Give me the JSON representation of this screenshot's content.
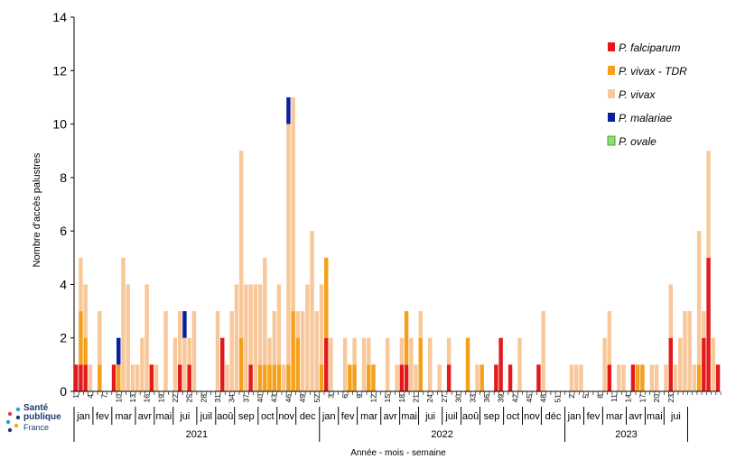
{
  "chart_data": {
    "type": "bar",
    "stacked": true,
    "ylabel": "Nombre d'accès palustres",
    "xlabel": "Année - mois - semaine",
    "ylim": [
      0,
      14
    ],
    "yticks": [
      0,
      2,
      4,
      6,
      8,
      10,
      12,
      14
    ],
    "legend_position": "top-right",
    "series": [
      {
        "name": "P. falciparum",
        "color": "#e31a1c",
        "values": [
          1,
          1,
          1,
          0,
          0,
          0,
          0,
          0,
          1,
          0,
          0,
          0,
          0,
          0,
          0,
          0,
          1,
          0,
          0,
          0,
          0,
          0,
          1,
          0,
          1,
          0,
          0,
          0,
          0,
          0,
          0,
          2,
          0,
          0,
          0,
          0,
          0,
          1,
          0,
          0,
          0,
          0,
          0,
          0,
          0,
          0,
          0,
          0,
          0,
          0,
          0,
          0,
          0,
          2,
          0,
          0,
          0,
          0,
          0,
          0,
          0,
          0,
          0,
          0,
          0,
          0,
          0,
          0,
          0,
          1,
          1,
          0,
          0,
          0,
          0,
          0,
          0,
          0,
          0,
          1,
          0,
          0,
          0,
          0,
          0,
          0,
          0,
          0,
          0,
          1,
          2,
          0,
          1,
          0,
          0,
          0,
          0,
          0,
          1,
          0,
          0,
          0,
          0,
          0,
          0,
          0,
          0,
          0,
          0,
          0,
          0,
          0,
          0,
          1,
          0,
          0,
          0,
          0,
          1,
          0,
          0,
          0,
          0,
          0,
          0,
          0,
          2,
          0,
          0,
          0,
          0,
          0,
          0,
          2,
          5,
          0,
          1
        ]
      },
      {
        "name": "P. vivax - TDR",
        "color": "#f5a01a",
        "values": [
          0,
          2,
          1,
          0,
          0,
          1,
          0,
          0,
          0,
          1,
          0,
          0,
          0,
          0,
          0,
          0,
          0,
          0,
          0,
          0,
          0,
          0,
          0,
          0,
          0,
          0,
          0,
          0,
          0,
          0,
          0,
          0,
          0,
          0,
          0,
          2,
          0,
          0,
          0,
          1,
          1,
          1,
          1,
          1,
          0,
          1,
          3,
          2,
          0,
          0,
          0,
          0,
          1,
          3,
          0,
          0,
          0,
          0,
          1,
          1,
          0,
          0,
          1,
          1,
          0,
          0,
          0,
          0,
          0,
          0,
          2,
          0,
          0,
          2,
          0,
          0,
          0,
          0,
          0,
          0,
          0,
          0,
          0,
          2,
          0,
          0,
          1,
          0,
          0,
          0,
          0,
          0,
          0,
          0,
          0,
          0,
          0,
          0,
          0,
          0,
          0,
          0,
          0,
          0,
          0,
          0,
          0,
          0,
          0,
          0,
          0,
          0,
          0,
          0,
          0,
          0,
          0,
          0,
          0,
          1,
          1,
          0,
          0,
          0,
          0,
          0,
          0,
          0,
          0,
          0,
          0,
          0,
          1,
          0,
          0,
          0,
          0
        ]
      },
      {
        "name": "P. vivax",
        "color": "#f8c89a",
        "values": [
          0,
          2,
          2,
          1,
          0,
          2,
          0,
          0,
          0,
          0,
          5,
          4,
          1,
          1,
          2,
          4,
          0,
          1,
          0,
          3,
          0,
          2,
          2,
          2,
          1,
          3,
          0,
          0,
          0,
          0,
          3,
          0,
          1,
          3,
          4,
          7,
          4,
          3,
          4,
          3,
          4,
          1,
          2,
          3,
          1,
          9,
          8,
          1,
          3,
          4,
          6,
          3,
          3,
          0,
          2,
          0,
          0,
          2,
          0,
          1,
          0,
          2,
          1,
          0,
          0,
          0,
          2,
          0,
          1,
          1,
          0,
          2,
          1,
          1,
          0,
          2,
          0,
          1,
          0,
          1,
          0,
          0,
          0,
          0,
          0,
          1,
          0,
          0,
          0,
          0,
          0,
          0,
          0,
          0,
          2,
          0,
          0,
          0,
          0,
          3,
          0,
          0,
          0,
          0,
          0,
          1,
          1,
          1,
          0,
          0,
          0,
          0,
          2,
          2,
          0,
          1,
          1,
          0,
          0,
          0,
          0,
          0,
          1,
          1,
          0,
          1,
          2,
          1,
          2,
          3,
          3,
          1,
          5,
          1,
          4,
          2,
          0
        ]
      },
      {
        "name": "P. malariae",
        "color": "#0a1e9e",
        "values": [
          0,
          0,
          0,
          0,
          0,
          0,
          0,
          0,
          0,
          1,
          0,
          0,
          0,
          0,
          0,
          0,
          0,
          0,
          0,
          0,
          0,
          0,
          0,
          1,
          0,
          0,
          0,
          0,
          0,
          0,
          0,
          0,
          0,
          0,
          0,
          0,
          0,
          0,
          0,
          0,
          0,
          0,
          0,
          0,
          0,
          1,
          0,
          0,
          0,
          0,
          0,
          0,
          0,
          0,
          0,
          0,
          0,
          0,
          0,
          0,
          0,
          0,
          0,
          0,
          0,
          0,
          0,
          0,
          0,
          0,
          0,
          0,
          0,
          0,
          0,
          0,
          0,
          0,
          0,
          0,
          0,
          0,
          0,
          0,
          0,
          0,
          0,
          0,
          0,
          0,
          0,
          0,
          0,
          0,
          0,
          0,
          0,
          0,
          0,
          0,
          0,
          0,
          0,
          0,
          0,
          0,
          0,
          0,
          0,
          0,
          0,
          0,
          0,
          0,
          0,
          0,
          0,
          0,
          0,
          0,
          0,
          0,
          0,
          0,
          0,
          0,
          0,
          0,
          0,
          0,
          0,
          0,
          0,
          0,
          0,
          0,
          0
        ]
      },
      {
        "name": "P. ovale",
        "color": "#8be06a",
        "values": [
          0,
          0,
          0,
          0,
          0,
          0,
          0,
          0,
          0,
          0,
          0,
          0,
          0,
          0,
          0,
          0,
          0,
          0,
          0,
          0,
          0,
          0,
          0,
          0,
          0,
          0,
          0,
          0,
          0,
          0,
          0,
          0,
          0,
          0,
          0,
          0,
          0,
          0,
          0,
          0,
          0,
          0,
          0,
          0,
          0,
          0,
          0,
          0,
          0,
          0,
          0,
          0,
          0,
          0,
          0,
          0,
          0,
          0,
          0,
          0,
          0,
          0,
          0,
          0,
          0,
          0,
          0,
          0,
          0,
          0,
          0,
          0,
          0,
          0,
          0,
          0,
          0,
          0,
          0,
          0,
          0,
          0,
          0,
          0,
          0,
          0,
          0,
          0,
          0,
          0,
          0,
          0,
          0,
          0,
          0,
          0,
          0,
          0,
          0,
          0,
          0,
          0,
          0,
          0,
          0,
          0,
          0,
          0,
          0,
          0,
          0,
          0,
          0,
          0,
          0,
          0,
          0,
          0,
          0,
          0,
          0,
          0,
          0,
          0,
          0,
          0,
          0,
          0,
          0,
          0,
          0,
          0,
          0,
          0,
          0,
          0,
          0
        ]
      }
    ],
    "week_ticks": [
      {
        "label": "1",
        "week_index": 0
      },
      {
        "label": "4",
        "week_index": 3
      },
      {
        "label": "7",
        "week_index": 6
      },
      {
        "label": "10",
        "week_index": 9
      },
      {
        "label": "13",
        "week_index": 12
      },
      {
        "label": "16",
        "week_index": 15
      },
      {
        "label": "19",
        "week_index": 18
      },
      {
        "label": "22",
        "week_index": 21
      },
      {
        "label": "25",
        "week_index": 24
      },
      {
        "label": "28",
        "week_index": 27
      },
      {
        "label": "31",
        "week_index": 30
      },
      {
        "label": "34",
        "week_index": 33
      },
      {
        "label": "37",
        "week_index": 36
      },
      {
        "label": "40",
        "week_index": 39
      },
      {
        "label": "43",
        "week_index": 42
      },
      {
        "label": "46",
        "week_index": 45
      },
      {
        "label": "49",
        "week_index": 48
      },
      {
        "label": "52",
        "week_index": 51
      },
      {
        "label": "3",
        "week_index": 54
      },
      {
        "label": "6",
        "week_index": 57
      },
      {
        "label": "9",
        "week_index": 60
      },
      {
        "label": "12",
        "week_index": 63
      },
      {
        "label": "15",
        "week_index": 66
      },
      {
        "label": "18",
        "week_index": 69
      },
      {
        "label": "21",
        "week_index": 72
      },
      {
        "label": "24",
        "week_index": 75
      },
      {
        "label": "27",
        "week_index": 78
      },
      {
        "label": "30",
        "week_index": 81
      },
      {
        "label": "33",
        "week_index": 84
      },
      {
        "label": "36",
        "week_index": 87
      },
      {
        "label": "39",
        "week_index": 90
      },
      {
        "label": "42",
        "week_index": 93
      },
      {
        "label": "45",
        "week_index": 96
      },
      {
        "label": "48",
        "week_index": 99
      },
      {
        "label": "51",
        "week_index": 102
      },
      {
        "label": "2",
        "week_index": 105
      },
      {
        "label": "5",
        "week_index": 108
      },
      {
        "label": "8",
        "week_index": 111
      },
      {
        "label": "11",
        "week_index": 114
      },
      {
        "label": "14",
        "week_index": 117
      },
      {
        "label": "17",
        "week_index": 120
      },
      {
        "label": "20",
        "week_index": 123
      },
      {
        "label": "23",
        "week_index": 126
      }
    ],
    "months": [
      {
        "label": "jan",
        "start": 0,
        "end": 4
      },
      {
        "label": "fev",
        "start": 4,
        "end": 8
      },
      {
        "label": "mar",
        "start": 8,
        "end": 13
      },
      {
        "label": "avr",
        "start": 13,
        "end": 17
      },
      {
        "label": "mai",
        "start": 17,
        "end": 21
      },
      {
        "label": "jui",
        "start": 21,
        "end": 26
      },
      {
        "label": "juil",
        "start": 26,
        "end": 30
      },
      {
        "label": "aoû",
        "start": 30,
        "end": 34
      },
      {
        "label": "sep",
        "start": 34,
        "end": 39
      },
      {
        "label": "oct",
        "start": 39,
        "end": 43
      },
      {
        "label": "nov",
        "start": 43,
        "end": 47
      },
      {
        "label": "dec",
        "start": 47,
        "end": 52
      },
      {
        "label": "jan",
        "start": 52,
        "end": 56
      },
      {
        "label": "fev",
        "start": 56,
        "end": 60
      },
      {
        "label": "mar",
        "start": 60,
        "end": 65
      },
      {
        "label": "avr",
        "start": 65,
        "end": 69
      },
      {
        "label": "mai",
        "start": 69,
        "end": 73
      },
      {
        "label": "jui",
        "start": 73,
        "end": 78
      },
      {
        "label": "juil",
        "start": 78,
        "end": 82
      },
      {
        "label": "aoû",
        "start": 82,
        "end": 86
      },
      {
        "label": "sep",
        "start": 86,
        "end": 91
      },
      {
        "label": "oct",
        "start": 91,
        "end": 95
      },
      {
        "label": "nov",
        "start": 95,
        "end": 99
      },
      {
        "label": "déc",
        "start": 99,
        "end": 104
      },
      {
        "label": "jan",
        "start": 104,
        "end": 108
      },
      {
        "label": "fev",
        "start": 108,
        "end": 112
      },
      {
        "label": "mar",
        "start": 112,
        "end": 117
      },
      {
        "label": "avr",
        "start": 117,
        "end": 121
      },
      {
        "label": "mai",
        "start": 121,
        "end": 125
      },
      {
        "label": "jui",
        "start": 125,
        "end": 130
      }
    ],
    "years": [
      {
        "label": "2021",
        "start": 0,
        "end": 52
      },
      {
        "label": "2022",
        "start": 52,
        "end": 104
      },
      {
        "label": "2023",
        "start": 104,
        "end": 130
      }
    ]
  },
  "logo": {
    "line1": "Santé",
    "line2": "publique",
    "line3": "France"
  }
}
